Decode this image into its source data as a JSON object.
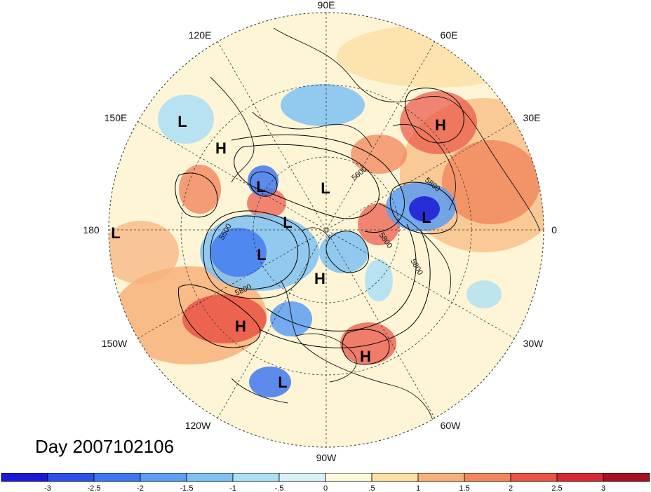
{
  "date_label": "Day 2007102106",
  "longitude_labels": {
    "e90": "90E",
    "e120": "120E",
    "e60": "60E",
    "e150": "150E",
    "e30": "30E",
    "e180": "180",
    "e0": "0",
    "w150": "150W",
    "w30": "30W",
    "w120": "120W",
    "w60": "60W",
    "w90": "90W"
  },
  "pressure_centers": [
    {
      "id": "pc-1",
      "label": "L"
    },
    {
      "id": "pc-2",
      "label": "H"
    },
    {
      "id": "pc-3",
      "label": "H"
    },
    {
      "id": "pc-4",
      "label": "L"
    },
    {
      "id": "pc-5",
      "label": "L"
    },
    {
      "id": "pc-6",
      "label": "L"
    },
    {
      "id": "pc-7",
      "label": "L"
    },
    {
      "id": "pc-8",
      "label": "L"
    },
    {
      "id": "pc-9",
      "label": "L"
    },
    {
      "id": "pc-10",
      "label": "H"
    },
    {
      "id": "pc-11",
      "label": "H"
    },
    {
      "id": "pc-12",
      "label": "H"
    },
    {
      "id": "pc-13",
      "label": "L"
    }
  ],
  "contour_labels": [
    "5500",
    "5600",
    "5800",
    "5800",
    "5800",
    "5800"
  ],
  "colorbar": {
    "labels": [
      "-3",
      "-2.5",
      "-2",
      "-1.5",
      "-1",
      "-.5",
      "0",
      ".5",
      "1",
      "1.5",
      "2",
      "2.5",
      "3"
    ],
    "colors": [
      "#1a1ad6",
      "#2f4fe8",
      "#3f78ef",
      "#5b9ef2",
      "#7fc1f2",
      "#aee0f4",
      "#d9f1f6",
      "#fffadc",
      "#fde0a4",
      "#f8b07a",
      "#f1865c",
      "#ea5446",
      "#d52a34",
      "#a70f24"
    ]
  }
}
